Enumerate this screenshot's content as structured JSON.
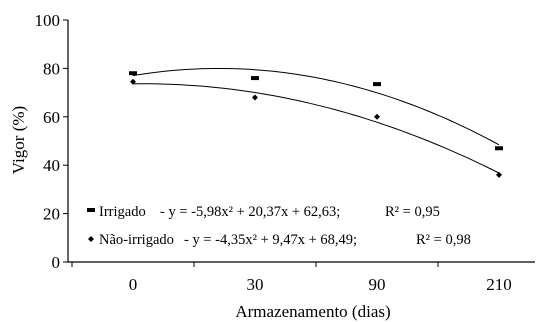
{
  "chart_data": {
    "type": "scatter",
    "title": "",
    "xlabel": "Armazenamento (dias)",
    "ylabel": "Vigor (%)",
    "categories": [
      "0",
      "30",
      "90",
      "210"
    ],
    "ylim": [
      0,
      100
    ],
    "yticks": [
      "0",
      "20",
      "40",
      "60",
      "80",
      "100"
    ],
    "grid": false,
    "legend_position": "bottom-left",
    "series": [
      {
        "name": "Irrigado",
        "marker": "dash",
        "values": [
          78,
          76,
          73.5,
          47
        ],
        "equation": "y = -5,98x² + 20,37x + 62,63;",
        "r2": "R² = 0,95",
        "fit": {
          "a": -5.98,
          "b": 20.37,
          "c": 62.63
        }
      },
      {
        "name": "Não-irrigado",
        "marker": "diamond",
        "values": [
          74.5,
          68,
          60,
          36
        ],
        "equation": "y = -4,35x² + 9,47x + 68,49;",
        "r2": "R² = 0,98",
        "fit": {
          "a": -4.35,
          "b": 9.47,
          "c": 68.49
        }
      }
    ]
  }
}
